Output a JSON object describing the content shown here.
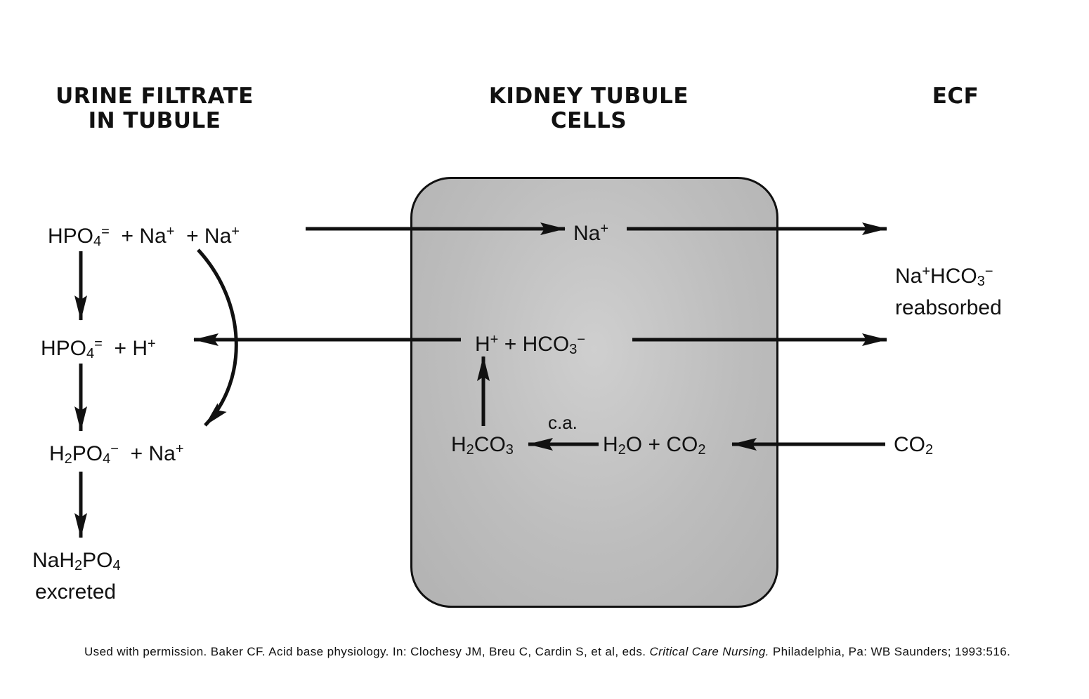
{
  "headers": {
    "urine": [
      "URINE FILTRATE",
      "IN TUBULE"
    ],
    "kidney": [
      "KIDNEY TUBULE",
      "CELLS"
    ],
    "ecf": "ECF"
  },
  "urine_side": {
    "row1": {
      "a": "HPO",
      "a_sub": "4",
      "a_sup": "=",
      "b": "+ Na",
      "b_sup": "+",
      "c": "+ Na",
      "c_sup": "+"
    },
    "row2": {
      "a": "HPO",
      "a_sub": "4",
      "a_sup": "=",
      "b": "+ H",
      "b_sup": "+"
    },
    "row3": {
      "a": "H",
      "a_sub": "2",
      "a2": "PO",
      "a2_sub": "4",
      "a_sup": "−",
      "b": "+ Na",
      "b_sup": "+"
    },
    "row4": {
      "a": "NaH",
      "a_sub": "2",
      "a2": "PO",
      "a2_sub": "4",
      "line2": "excreted"
    }
  },
  "cell_side": {
    "na": {
      "text": "Na",
      "sup": "+"
    },
    "h_hco3": {
      "h": "H",
      "h_sup": "+",
      "plus": "+",
      "hco": "HCO",
      "hco_sub": "3",
      "hco_sup": "−"
    },
    "ca": "c.a.",
    "h2co3": {
      "a": "H",
      "a_sub": "2",
      "b": "CO",
      "b_sub": "3"
    },
    "h2o_co2": {
      "a": "H",
      "a_sub": "2",
      "b": "O + CO",
      "b_sub": "2"
    }
  },
  "ecf_side": {
    "nahco3": {
      "na": "Na",
      "na_sup": "+",
      "hco": "HCO",
      "hco_sub": "3",
      "hco_sup": "−",
      "line2": "reabsorbed"
    },
    "co2": {
      "text": "CO",
      "sub": "2"
    }
  },
  "footer": {
    "pre": "Used with permission. Baker CF. Acid base physiology. In: Clochesy JM, Breu C, Cardin S, et al, eds. ",
    "italic": "Critical Care Nursing.",
    "post": " Philadelphia, Pa: WB Saunders; 1993:516."
  }
}
